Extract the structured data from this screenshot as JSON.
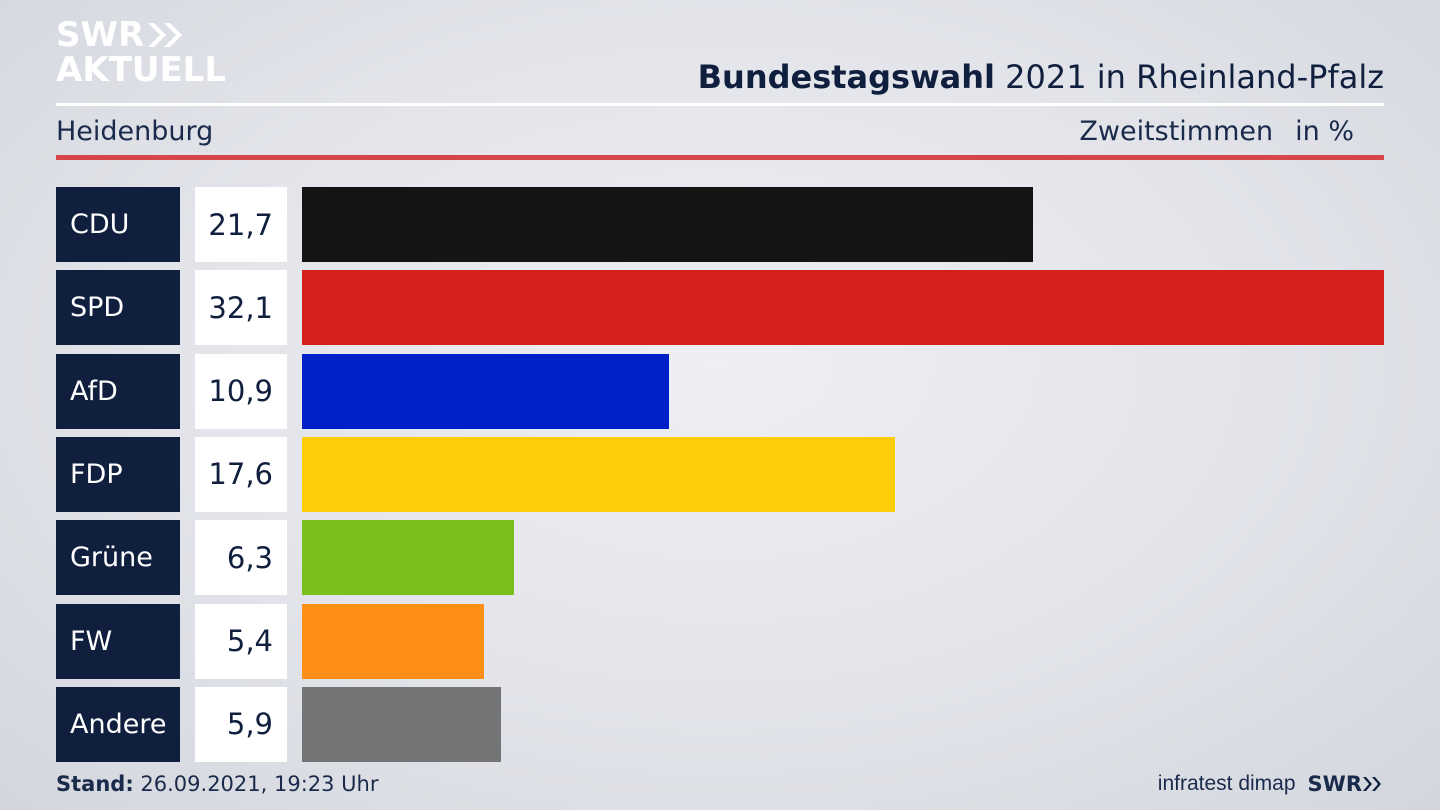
{
  "header": {
    "logo_line1": "SWR",
    "logo_line2": "AKTUELL",
    "title_bold": "Bundestagswahl",
    "title_rest": " 2021 in Rheinland-Pfalz",
    "location": "Heidenburg",
    "measure": "Zweitstimmen",
    "unit": "in %"
  },
  "chart_data": {
    "type": "bar",
    "categories": [
      "CDU",
      "SPD",
      "AfD",
      "FDP",
      "Grüne",
      "FW",
      "Andere"
    ],
    "values": [
      21.7,
      32.1,
      10.9,
      17.6,
      6.3,
      5.4,
      5.9
    ],
    "value_labels": [
      "21,7",
      "32,1",
      "10,9",
      "17,6",
      "6,3",
      "5,4",
      "5,9"
    ],
    "colors": [
      "#141414",
      "#d81f20",
      "#0020c8",
      "#fdcd0a",
      "#78bf1c",
      "#fe8f16",
      "#737475"
    ],
    "orientation": "horizontal",
    "grid": false,
    "legend": "none"
  },
  "footer": {
    "stand_label": "Stand:",
    "stand_value": " 26.09.2021, 19:23 Uhr",
    "source": "infratest dimap",
    "brand": "SWR"
  }
}
